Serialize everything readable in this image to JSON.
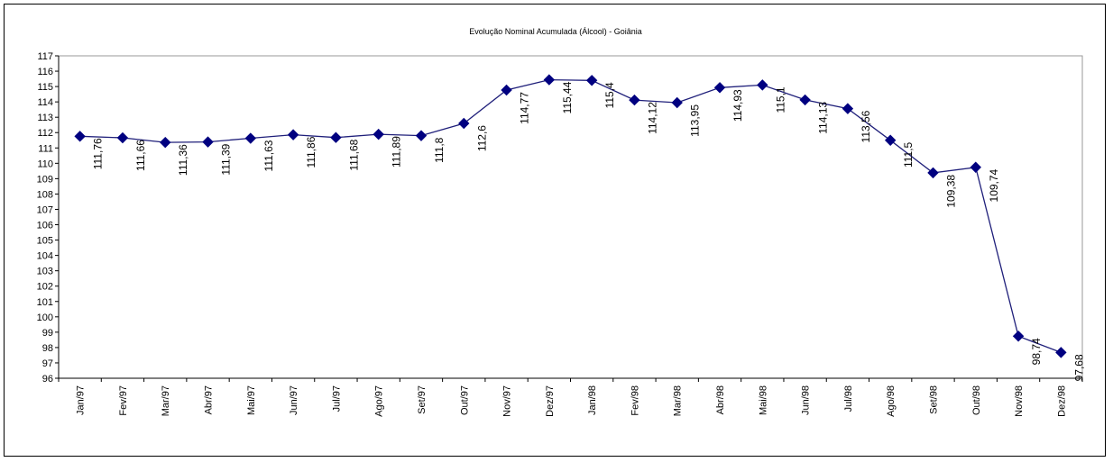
{
  "chart_data": {
    "type": "line",
    "title": "Evolução Nominal Acumulada (Álcool) - Goiânia",
    "xlabel": "",
    "ylabel": "",
    "categories": [
      "Jan/97",
      "Fev/97",
      "Mar/97",
      "Abr/97",
      "Mai/97",
      "Jun/97",
      "Jul/97",
      "Ago/97",
      "Set/97",
      "Out/97",
      "Nov/97",
      "Dez/97",
      "Jan/98",
      "Fev/98",
      "Mar/98",
      "Abr/98",
      "Mai/98",
      "Jun/98",
      "Jul/98",
      "Ago/98",
      "Set/98",
      "Out/98",
      "Nov/98",
      "Dez/98"
    ],
    "values": [
      111.76,
      111.66,
      111.36,
      111.39,
      111.63,
      111.86,
      111.68,
      111.89,
      111.8,
      112.6,
      114.77,
      115.44,
      115.4,
      114.12,
      113.95,
      114.93,
      115.1,
      114.13,
      113.56,
      111.5,
      109.38,
      109.74,
      98.74,
      97.68
    ],
    "data_labels": [
      "111,76",
      "111,66",
      "111,36",
      "111,39",
      "111,63",
      "111,86",
      "111,68",
      "111,89",
      "111,8",
      "112,6",
      "114,77",
      "115,44",
      "115,4",
      "114,12",
      "113,95",
      "114,93",
      "115,1",
      "114,13",
      "113,56",
      "111,5",
      "109,38",
      "109,74",
      "98,74",
      "97,68"
    ],
    "ylim": [
      96,
      117
    ],
    "yticks": [
      96,
      97,
      98,
      99,
      100,
      101,
      102,
      103,
      104,
      105,
      106,
      107,
      108,
      109,
      110,
      111,
      112,
      113,
      114,
      115,
      116,
      117
    ],
    "line_color": "#1f1f7a",
    "marker_color": "#000080",
    "marker": "diamond",
    "grid": false,
    "legend": "none"
  }
}
